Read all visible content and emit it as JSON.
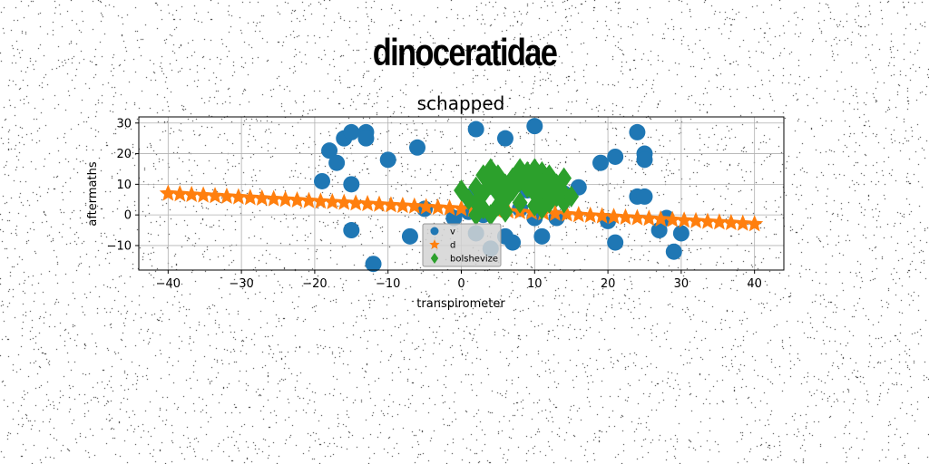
{
  "figure_title": "dinoceratidae",
  "chart_data": {
    "type": "scatter",
    "title": "schapped",
    "xlabel": "transpirometer",
    "ylabel": "aftermaths",
    "xlim": [
      -44,
      44
    ],
    "ylim": [
      -18,
      32
    ],
    "xticks": [
      -40,
      -30,
      -20,
      -10,
      0,
      10,
      20,
      30,
      40
    ],
    "yticks": [
      -10,
      0,
      10,
      20,
      30
    ],
    "grid": true,
    "legend_position": "lower-center",
    "series": [
      {
        "name": "v",
        "marker": "circle",
        "color": "#1f77b4",
        "points": [
          [
            -19,
            11
          ],
          [
            -18,
            21
          ],
          [
            -17,
            17
          ],
          [
            -16,
            25
          ],
          [
            -15,
            27
          ],
          [
            -15,
            10
          ],
          [
            -15,
            -5
          ],
          [
            -13,
            27
          ],
          [
            -13,
            25
          ],
          [
            -12,
            -16
          ],
          [
            -10,
            18
          ],
          [
            -7,
            -7
          ],
          [
            -6,
            22
          ],
          [
            -5,
            2
          ],
          [
            -1,
            -1
          ],
          [
            1,
            6
          ],
          [
            1,
            1
          ],
          [
            2,
            28
          ],
          [
            2,
            -6
          ],
          [
            3,
            0
          ],
          [
            4,
            -11
          ],
          [
            5,
            8
          ],
          [
            6,
            25
          ],
          [
            6,
            -7
          ],
          [
            7,
            -9
          ],
          [
            8,
            2
          ],
          [
            9,
            8
          ],
          [
            10,
            29
          ],
          [
            10,
            -1
          ],
          [
            11,
            3
          ],
          [
            11,
            -7
          ],
          [
            12,
            5
          ],
          [
            13,
            -1
          ],
          [
            14,
            7
          ],
          [
            16,
            9
          ],
          [
            19,
            17
          ],
          [
            20,
            -2
          ],
          [
            21,
            19
          ],
          [
            21,
            -9
          ],
          [
            24,
            27
          ],
          [
            24,
            6
          ],
          [
            25,
            6
          ],
          [
            25,
            20
          ],
          [
            25,
            18
          ],
          [
            27,
            -5
          ],
          [
            28,
            -1
          ],
          [
            29,
            -12
          ],
          [
            30,
            -6
          ]
        ]
      },
      {
        "name": "d",
        "marker": "star",
        "color": "#ff7f0e",
        "x_start": -40,
        "x_end": 40,
        "count": 51,
        "y_start": 7,
        "y_end": -3
      },
      {
        "name": "bolshevize",
        "marker": "diamond",
        "color": "#2ca02c",
        "points": [
          [
            0,
            8
          ],
          [
            1,
            5
          ],
          [
            2,
            9
          ],
          [
            2,
            4
          ],
          [
            2,
            0
          ],
          [
            3,
            13
          ],
          [
            3,
            7
          ],
          [
            3,
            2
          ],
          [
            4,
            15
          ],
          [
            4,
            10
          ],
          [
            4,
            0
          ],
          [
            5,
            13
          ],
          [
            5,
            7
          ],
          [
            5,
            3
          ],
          [
            6,
            10
          ],
          [
            6,
            5
          ],
          [
            6,
            1
          ],
          [
            7,
            12
          ],
          [
            7,
            8
          ],
          [
            8,
            15
          ],
          [
            8,
            11
          ],
          [
            8,
            4
          ],
          [
            9,
            14
          ],
          [
            9,
            9
          ],
          [
            10,
            15
          ],
          [
            10,
            11
          ],
          [
            10,
            7
          ],
          [
            10,
            3
          ],
          [
            11,
            14
          ],
          [
            11,
            10
          ],
          [
            11,
            6
          ],
          [
            11,
            2
          ],
          [
            12,
            13
          ],
          [
            12,
            8
          ],
          [
            12,
            4
          ],
          [
            13,
            10
          ],
          [
            13,
            6
          ],
          [
            14,
            12
          ],
          [
            14,
            7
          ],
          [
            14,
            4
          ],
          [
            15,
            6
          ]
        ]
      }
    ]
  }
}
